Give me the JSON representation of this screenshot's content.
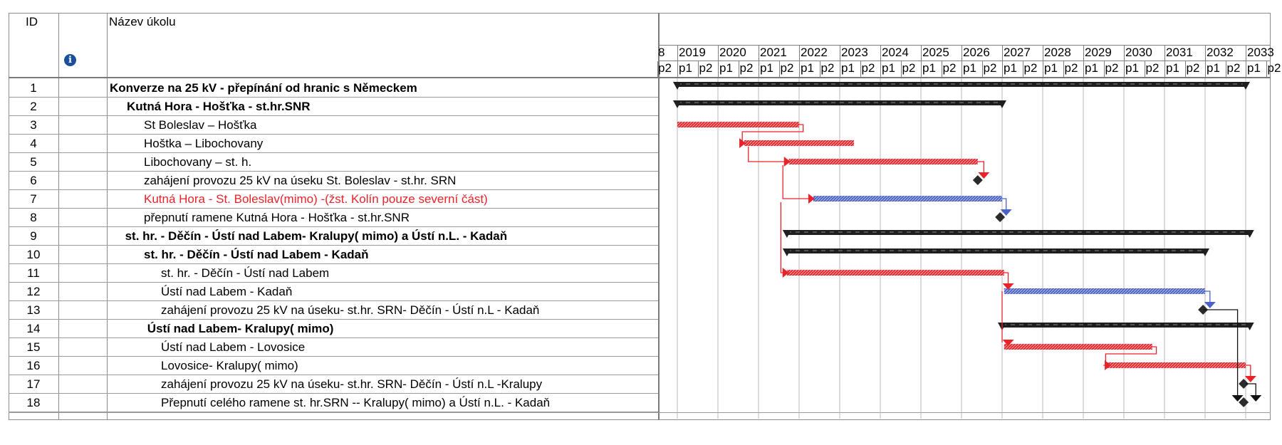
{
  "header": {
    "id_label": "ID",
    "name_label": "Název úkolu",
    "info_icon": "info-icon"
  },
  "timescale": {
    "leading_fragment": "8",
    "years": [
      "2019",
      "2020",
      "2021",
      "2022",
      "2023",
      "2024",
      "2025",
      "2026",
      "2027",
      "2028",
      "2029",
      "2030",
      "2031",
      "2032",
      "2033"
    ],
    "half_labels": [
      "p1",
      "p2"
    ],
    "leading_half": "p2"
  },
  "colors": {
    "summary": "#1f1f1f",
    "task_red": "#e8232a",
    "task_blue": "#4b63c6",
    "milestone": "#2b2b2b",
    "grid": "#9a9a9a"
  },
  "tasks": [
    {
      "id": "1",
      "name": "Konverze na 25 kV -  přepínání od hranic s Německem",
      "indent": 0,
      "style": "bold"
    },
    {
      "id": "2",
      "name": "Kutná Hora - Hošťka  - st.hr.SNR",
      "indent": 1,
      "style": "bold"
    },
    {
      "id": "3",
      "name": "St Boleslav – Hošťka",
      "indent": 2,
      "style": "normal"
    },
    {
      "id": "4",
      "name": "Hoštka – Libochovany",
      "indent": 2,
      "style": "normal"
    },
    {
      "id": "5",
      "name": " Libochovany – st. h.",
      "indent": 2,
      "style": "normal"
    },
    {
      "id": "6",
      "name": "zahájení provozu 25 kV na úseku St. Boleslav - st.hr. SRN",
      "indent": 2,
      "style": "normal"
    },
    {
      "id": "7",
      "name": "Kutná Hora - St. Boleslav(mimo) -(žst. Kolín pouze severní část)",
      "indent": 2,
      "style": "red"
    },
    {
      "id": "8",
      "name": "přepnutí ramene  Kutná Hora - Hošťka  - st.hr.SNR",
      "indent": 2,
      "style": "normal"
    },
    {
      "id": "9",
      "name": "st. hr. - Děčín - Ústí nad Labem- Kralupy( mimo) a Ústí n.L. - Kadaň",
      "indent": 0.9,
      "style": "bold"
    },
    {
      "id": "10",
      "name": "st. hr. - Děčín - Ústí nad Labem - Kadaň",
      "indent": 2,
      "style": "bold"
    },
    {
      "id": "11",
      "name": "st. hr. - Děčín - Ústí nad Labem",
      "indent": 3,
      "style": "normal"
    },
    {
      "id": "12",
      "name": "Ústí nad Labem - Kadaň",
      "indent": 3,
      "style": "normal"
    },
    {
      "id": "13",
      "name": "zahájení provozu 25 kV na úseku- st.hr. SRN- Děčín - Ústí n.L - Kadaň",
      "indent": 3,
      "style": "normal"
    },
    {
      "id": "14",
      "name": "Ústí nad Labem- Kralupy( mimo)",
      "indent": 2.2,
      "style": "bold"
    },
    {
      "id": "15",
      "name": " Ústí nad Labem - Lovosice",
      "indent": 3,
      "style": "normal"
    },
    {
      "id": "16",
      "name": "Lovosice- Kralupy( mimo)",
      "indent": 3,
      "style": "normal"
    },
    {
      "id": "17",
      "name": "zahájení provozu 25 kV na úseku- st.hr. SRN- Děčín - Ústí n.L -Kralupy",
      "indent": 3,
      "style": "normal"
    },
    {
      "id": "18",
      "name": "Přepnutí celého ramene st. hr.SRN -- Kralupy( mimo) a Ústí n.L. - Kadaň",
      "indent": 3,
      "style": "normal"
    }
  ],
  "bars": [
    {
      "row": 1,
      "type": "summary",
      "start": 2019.0,
      "end": 2033.0
    },
    {
      "row": 2,
      "type": "summary",
      "start": 2019.0,
      "end": 2027.0
    },
    {
      "row": 3,
      "type": "red",
      "start": 2019.0,
      "end": 2022.0
    },
    {
      "row": 4,
      "type": "red",
      "start": 2020.65,
      "end": 2023.35
    },
    {
      "row": 5,
      "type": "red",
      "start": 2021.75,
      "end": 2026.4
    },
    {
      "row": 6,
      "type": "milestone",
      "at": 2026.4
    },
    {
      "row": 7,
      "type": "blue",
      "start": 2022.35,
      "end": 2027.0
    },
    {
      "row": 8,
      "type": "milestone",
      "at": 2026.95
    },
    {
      "row": 9,
      "type": "summary",
      "start": 2021.7,
      "end": 2033.1
    },
    {
      "row": 10,
      "type": "summary",
      "start": 2021.7,
      "end": 2032.0
    },
    {
      "row": 11,
      "type": "red",
      "start": 2021.7,
      "end": 2027.05
    },
    {
      "row": 12,
      "type": "blue",
      "start": 2027.05,
      "end": 2032.0
    },
    {
      "row": 13,
      "type": "milestone",
      "at": 2031.95
    },
    {
      "row": 14,
      "type": "summary",
      "start": 2027.0,
      "end": 2033.1
    },
    {
      "row": 15,
      "type": "red",
      "start": 2027.05,
      "end": 2030.7
    },
    {
      "row": 16,
      "type": "red",
      "start": 2029.6,
      "end": 2033.0
    },
    {
      "row": 17,
      "type": "milestone",
      "at": 2032.95
    },
    {
      "row": 18,
      "type": "milestone",
      "at": 2032.95
    }
  ]
}
